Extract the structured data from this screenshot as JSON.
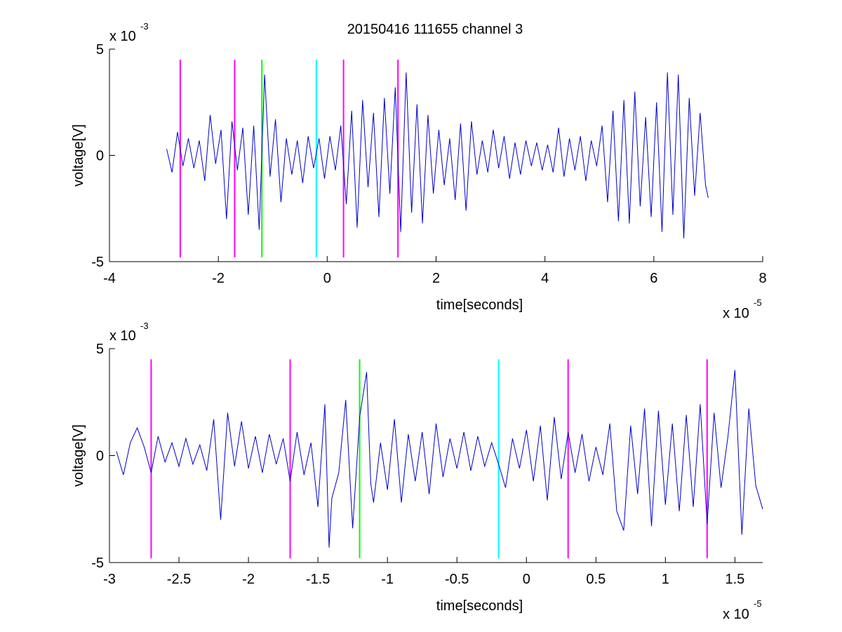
{
  "figure": {
    "title": "20150416 111655 channel 3"
  },
  "chart_data": [
    {
      "type": "line",
      "title": "20150416 111655 channel 3",
      "xlabel": "time[seconds]",
      "ylabel": "voltage[V]",
      "x_exponent": "x 10",
      "x_exponent_power": "-5",
      "y_exponent": "x 10",
      "y_exponent_power": "-3",
      "xlim": [
        -4,
        8
      ],
      "ylim": [
        -5,
        5
      ],
      "x_ticks": [
        -4,
        -2,
        0,
        2,
        4,
        6,
        8
      ],
      "x_tick_labels": [
        "-4",
        "-2",
        "0",
        "2",
        "4",
        "6",
        "8"
      ],
      "y_ticks": [
        -5,
        0,
        5
      ],
      "y_tick_labels": [
        "-5",
        "0",
        "5"
      ],
      "grid": false,
      "box": "left-bottom axes only",
      "trace_color": "#0000cc",
      "trace_x_range": [
        -2.95,
        7.0
      ],
      "markers": [
        {
          "x": -2.7,
          "ymin": -4.8,
          "ymax": 4.5,
          "color": "#ff00ff"
        },
        {
          "x": -1.7,
          "ymin": -4.8,
          "ymax": 4.5,
          "color": "#ff00ff"
        },
        {
          "x": -1.2,
          "ymin": -4.8,
          "ymax": 4.5,
          "color": "#00ff00"
        },
        {
          "x": -0.2,
          "ymin": -4.8,
          "ymax": 4.5,
          "color": "#00ffff"
        },
        {
          "x": 0.3,
          "ymin": -4.8,
          "ymax": 4.5,
          "color": "#ff00ff"
        },
        {
          "x": 1.3,
          "ymin": -4.8,
          "ymax": 4.5,
          "color": "#ff00ff"
        }
      ],
      "series": [
        {
          "color": "#0000cc",
          "x": [
            -2.95,
            -2.85,
            -2.75,
            -2.65,
            -2.55,
            -2.45,
            -2.35,
            -2.25,
            -2.15,
            -2.05,
            -1.95,
            -1.85,
            -1.75,
            -1.65,
            -1.55,
            -1.45,
            -1.35,
            -1.25,
            -1.15,
            -1.05,
            -0.95,
            -0.85,
            -0.75,
            -0.65,
            -0.55,
            -0.45,
            -0.35,
            -0.25,
            -0.15,
            -0.05,
            0.05,
            0.15,
            0.25,
            0.35,
            0.45,
            0.55,
            0.65,
            0.75,
            0.85,
            0.95,
            1.05,
            1.15,
            1.25,
            1.35,
            1.45,
            1.55,
            1.65,
            1.75,
            1.85,
            1.95,
            2.05,
            2.15,
            2.25,
            2.35,
            2.45,
            2.55,
            2.65,
            2.75,
            2.85,
            2.95,
            3.05,
            3.15,
            3.25,
            3.35,
            3.45,
            3.55,
            3.65,
            3.75,
            3.85,
            3.95,
            4.05,
            4.15,
            4.25,
            4.35,
            4.45,
            4.55,
            4.65,
            4.75,
            4.85,
            4.95,
            5.05,
            5.15,
            5.25,
            5.35,
            5.45,
            5.55,
            5.65,
            5.75,
            5.85,
            5.95,
            6.05,
            6.15,
            6.25,
            6.35,
            6.45,
            6.55,
            6.65,
            6.75,
            6.85,
            6.95,
            7.0
          ],
          "y": [
            0.3,
            -0.8,
            1.1,
            -0.5,
            0.8,
            -0.6,
            0.7,
            -1.2,
            1.9,
            -0.4,
            1.2,
            -3.0,
            1.6,
            -0.7,
            1.3,
            -2.8,
            1.4,
            -3.5,
            3.8,
            -1.0,
            1.7,
            -2.2,
            0.8,
            -0.9,
            0.7,
            -1.3,
            0.9,
            -0.6,
            0.8,
            -1.1,
            0.9,
            -0.7,
            1.4,
            -2.3,
            2.1,
            -3.4,
            2.6,
            -1.5,
            2.0,
            -2.9,
            2.7,
            -1.8,
            3.2,
            -3.6,
            3.9,
            -2.7,
            2.4,
            -3.2,
            1.9,
            -1.8,
            1.2,
            -1.4,
            0.8,
            -2.1,
            1.5,
            -2.6,
            1.6,
            -0.9,
            0.7,
            -0.8,
            1.2,
            -0.6,
            0.9,
            -1.1,
            0.6,
            -0.9,
            0.7,
            -0.5,
            0.6,
            -0.7,
            0.5,
            -0.8,
            1.3,
            -1.0,
            0.8,
            -0.7,
            0.9,
            -1.2,
            0.7,
            -0.5,
            1.4,
            -2.2,
            2.1,
            -3.1,
            2.6,
            -3.2,
            3.0,
            -2.4,
            1.8,
            -2.9,
            2.5,
            -3.6,
            3.9,
            -2.8,
            3.8,
            -3.9,
            2.7,
            -1.9,
            2.0,
            -1.4,
            -2.0
          ]
        }
      ]
    },
    {
      "type": "line",
      "title": "",
      "xlabel": "time[seconds]",
      "ylabel": "voltage[V]",
      "x_exponent": "x 10",
      "x_exponent_power": "-5",
      "y_exponent": "x 10",
      "y_exponent_power": "-3",
      "xlim": [
        -3.0,
        1.7
      ],
      "ylim": [
        -5,
        5
      ],
      "x_ticks": [
        -3,
        -2.5,
        -2,
        -1.5,
        -1,
        -0.5,
        0,
        0.5,
        1,
        1.5
      ],
      "x_tick_labels": [
        "-3",
        "-2.5",
        "-2",
        "-1.5",
        "-1",
        "-0.5",
        "0",
        "0.5",
        "1",
        "1.5"
      ],
      "y_ticks": [
        -5,
        0,
        5
      ],
      "y_tick_labels": [
        "-5",
        "0",
        "5"
      ],
      "grid": false,
      "box": "left-bottom axes only",
      "trace_color": "#0000cc",
      "trace_x_range": [
        -2.95,
        1.7
      ],
      "markers": [
        {
          "x": -2.7,
          "ymin": -4.8,
          "ymax": 4.5,
          "color": "#ff00ff"
        },
        {
          "x": -1.7,
          "ymin": -4.8,
          "ymax": 4.5,
          "color": "#ff00ff"
        },
        {
          "x": -1.2,
          "ymin": -4.8,
          "ymax": 4.5,
          "color": "#00ff00"
        },
        {
          "x": -0.2,
          "ymin": -4.8,
          "ymax": 4.5,
          "color": "#00ffff"
        },
        {
          "x": 0.3,
          "ymin": -4.8,
          "ymax": 4.5,
          "color": "#ff00ff"
        },
        {
          "x": 1.3,
          "ymin": -4.8,
          "ymax": 4.5,
          "color": "#ff00ff"
        }
      ],
      "series": [
        {
          "color": "#0000cc",
          "x": [
            -2.95,
            -2.9,
            -2.85,
            -2.8,
            -2.75,
            -2.7,
            -2.65,
            -2.6,
            -2.55,
            -2.5,
            -2.45,
            -2.4,
            -2.35,
            -2.3,
            -2.25,
            -2.2,
            -2.15,
            -2.1,
            -2.05,
            -2.0,
            -1.95,
            -1.9,
            -1.85,
            -1.8,
            -1.75,
            -1.7,
            -1.65,
            -1.6,
            -1.55,
            -1.5,
            -1.45,
            -1.42,
            -1.4,
            -1.35,
            -1.3,
            -1.25,
            -1.2,
            -1.15,
            -1.12,
            -1.1,
            -1.05,
            -1.0,
            -0.95,
            -0.9,
            -0.85,
            -0.8,
            -0.75,
            -0.7,
            -0.65,
            -0.6,
            -0.55,
            -0.5,
            -0.45,
            -0.4,
            -0.35,
            -0.3,
            -0.25,
            -0.2,
            -0.15,
            -0.1,
            -0.05,
            0.0,
            0.05,
            0.1,
            0.15,
            0.2,
            0.25,
            0.3,
            0.35,
            0.4,
            0.45,
            0.5,
            0.55,
            0.6,
            0.65,
            0.7,
            0.75,
            0.8,
            0.85,
            0.9,
            0.95,
            1.0,
            1.05,
            1.1,
            1.15,
            1.2,
            1.25,
            1.3,
            1.35,
            1.4,
            1.45,
            1.5,
            1.55,
            1.6,
            1.65,
            1.7
          ],
          "y": [
            0.2,
            -0.9,
            0.6,
            1.3,
            0.4,
            -0.8,
            0.9,
            -0.3,
            0.6,
            -0.5,
            0.8,
            -0.4,
            0.5,
            -0.7,
            1.7,
            -3.0,
            2.0,
            -0.5,
            1.6,
            -0.6,
            0.9,
            -0.8,
            1.0,
            -0.4,
            0.8,
            -1.2,
            1.1,
            -0.9,
            0.6,
            -2.4,
            2.4,
            -4.3,
            -2.0,
            -0.8,
            2.6,
            -3.4,
            1.8,
            3.9,
            -1.3,
            -2.2,
            0.6,
            -1.6,
            1.7,
            -2.2,
            1.0,
            -1.2,
            1.1,
            -1.8,
            1.5,
            -1.0,
            0.8,
            -0.6,
            1.1,
            -0.7,
            0.9,
            -0.5,
            0.6,
            -0.4,
            -1.5,
            0.8,
            -0.6,
            1.2,
            -1.2,
            1.4,
            -2.1,
            1.8,
            -1.1,
            1.1,
            -0.8,
            1.0,
            -1.2,
            0.4,
            -0.9,
            1.5,
            -2.6,
            -3.5,
            1.4,
            -1.8,
            2.2,
            -3.3,
            2.1,
            -2.3,
            1.5,
            -2.6,
            1.9,
            -2.4,
            2.4,
            -3.2,
            2.0,
            -1.5,
            0.9,
            4.0,
            -3.7,
            2.2,
            -1.4,
            -2.5
          ]
        }
      ]
    }
  ]
}
